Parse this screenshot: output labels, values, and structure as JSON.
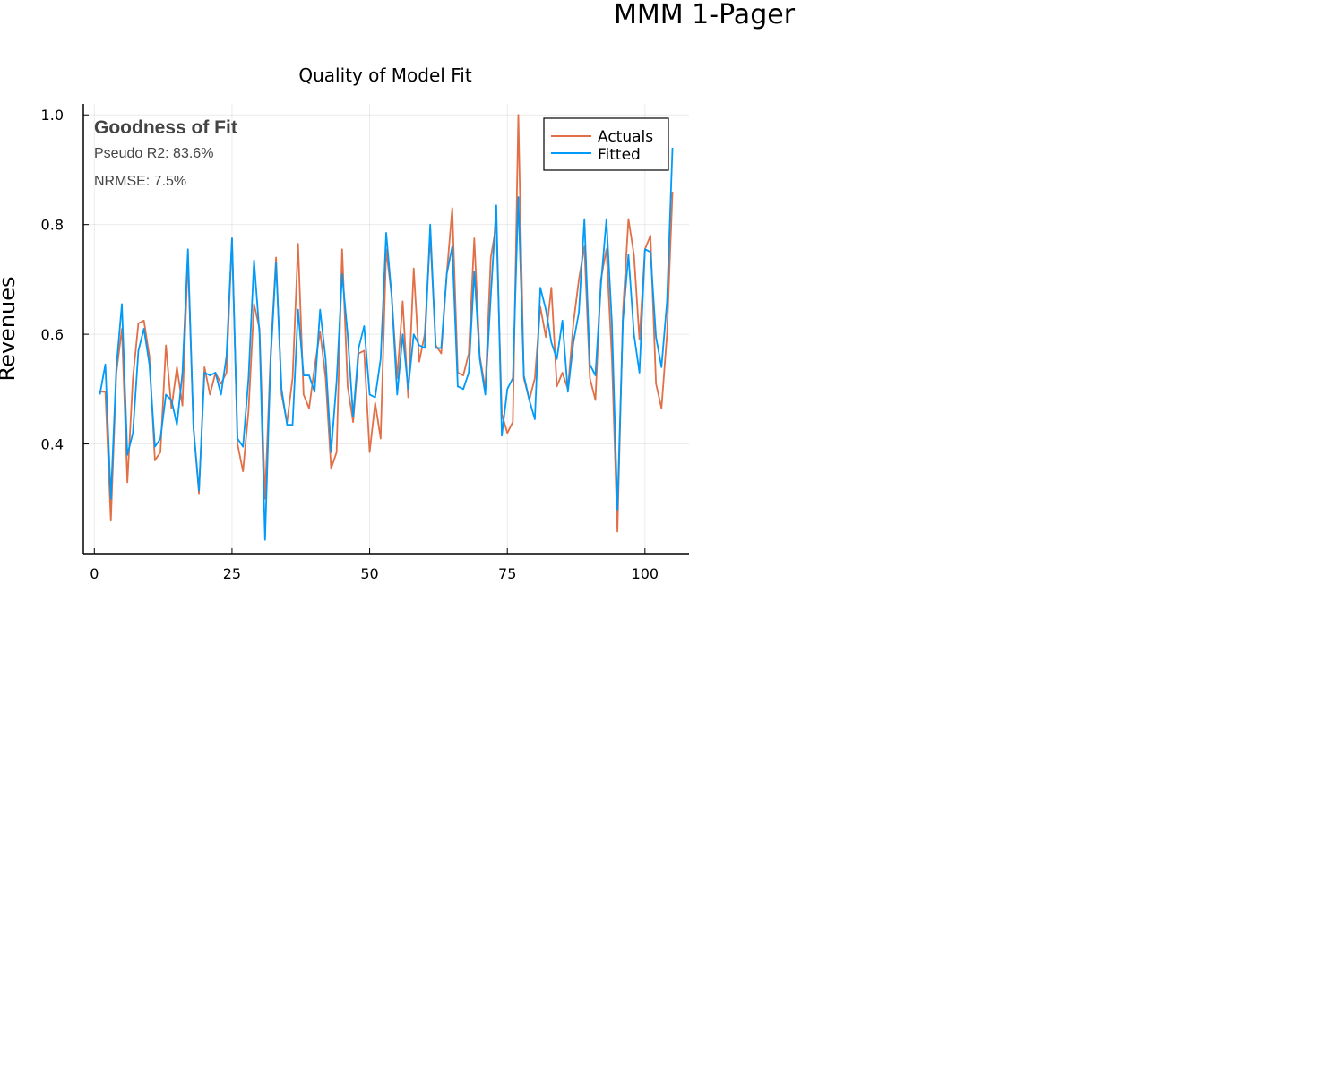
{
  "page": {
    "title": "MMM 1-Pager"
  },
  "chart_data": {
    "type": "line",
    "title": "Quality of Model Fit",
    "xlabel": "",
    "ylabel": "Revenues",
    "xlim": [
      -2,
      108
    ],
    "ylim": [
      0.2,
      1.02
    ],
    "x_ticks": [
      0,
      25,
      50,
      75,
      100
    ],
    "y_ticks": [
      0.4,
      0.6,
      0.8,
      1.0
    ],
    "x_tick_labels": [
      "0",
      "25",
      "50",
      "75",
      "100"
    ],
    "y_tick_labels": [
      "0.4",
      "0.6",
      "0.8",
      "1.0"
    ],
    "grid": true,
    "legend": "top-right",
    "annotation": {
      "title": "Goodness of Fit",
      "line1": "Pseudo R2: 83.6%",
      "line2": "NRMSE: 7.5%"
    },
    "x": [
      1,
      2,
      3,
      4,
      5,
      6,
      7,
      8,
      9,
      10,
      11,
      12,
      13,
      14,
      15,
      16,
      17,
      18,
      19,
      20,
      21,
      22,
      23,
      24,
      25,
      26,
      27,
      28,
      29,
      30,
      31,
      32,
      33,
      34,
      35,
      36,
      37,
      38,
      39,
      40,
      41,
      42,
      43,
      44,
      45,
      46,
      47,
      48,
      49,
      50,
      51,
      52,
      53,
      54,
      55,
      56,
      57,
      58,
      59,
      60,
      61,
      62,
      63,
      64,
      65,
      66,
      67,
      68,
      69,
      70,
      71,
      72,
      73,
      74,
      75,
      76,
      77,
      78,
      79,
      80,
      81,
      82,
      83,
      84,
      85,
      86,
      87,
      88,
      89,
      90,
      91,
      92,
      93,
      94,
      95,
      96,
      97,
      98,
      99,
      100,
      101,
      102,
      103,
      104,
      105
    ],
    "series": [
      {
        "name": "Actuals",
        "color": "#e26f46",
        "values": [
          0.495,
          0.495,
          0.26,
          0.53,
          0.61,
          0.33,
          0.52,
          0.62,
          0.625,
          0.56,
          0.37,
          0.385,
          0.58,
          0.465,
          0.54,
          0.47,
          0.74,
          0.43,
          0.31,
          0.54,
          0.49,
          0.53,
          0.51,
          0.53,
          0.775,
          0.4,
          0.35,
          0.46,
          0.655,
          0.61,
          0.3,
          0.56,
          0.74,
          0.49,
          0.44,
          0.52,
          0.765,
          0.49,
          0.465,
          0.54,
          0.605,
          0.52,
          0.355,
          0.385,
          0.755,
          0.505,
          0.44,
          0.565,
          0.57,
          0.385,
          0.475,
          0.41,
          0.755,
          0.67,
          0.52,
          0.66,
          0.485,
          0.72,
          0.55,
          0.6,
          0.78,
          0.58,
          0.565,
          0.71,
          0.83,
          0.53,
          0.525,
          0.565,
          0.775,
          0.56,
          0.5,
          0.74,
          0.8,
          0.455,
          0.42,
          0.44,
          1.0,
          0.52,
          0.48,
          0.52,
          0.65,
          0.595,
          0.685,
          0.505,
          0.53,
          0.5,
          0.62,
          0.7,
          0.76,
          0.52,
          0.48,
          0.7,
          0.755,
          0.555,
          0.24,
          0.64,
          0.81,
          0.745,
          0.59,
          0.755,
          0.78,
          0.51,
          0.465,
          0.6,
          0.86
        ]
      },
      {
        "name": "Fitted",
        "color": "#009af9",
        "values": [
          0.49,
          0.545,
          0.3,
          0.54,
          0.655,
          0.38,
          0.42,
          0.57,
          0.61,
          0.545,
          0.395,
          0.41,
          0.49,
          0.48,
          0.435,
          0.53,
          0.755,
          0.43,
          0.315,
          0.53,
          0.525,
          0.53,
          0.49,
          0.56,
          0.775,
          0.41,
          0.395,
          0.52,
          0.735,
          0.6,
          0.225,
          0.55,
          0.73,
          0.5,
          0.435,
          0.435,
          0.645,
          0.525,
          0.525,
          0.495,
          0.645,
          0.555,
          0.385,
          0.515,
          0.71,
          0.6,
          0.45,
          0.575,
          0.615,
          0.49,
          0.485,
          0.555,
          0.785,
          0.67,
          0.49,
          0.6,
          0.5,
          0.6,
          0.58,
          0.575,
          0.8,
          0.575,
          0.575,
          0.71,
          0.76,
          0.505,
          0.5,
          0.53,
          0.715,
          0.555,
          0.49,
          0.67,
          0.835,
          0.415,
          0.5,
          0.52,
          0.85,
          0.525,
          0.48,
          0.445,
          0.685,
          0.645,
          0.585,
          0.555,
          0.625,
          0.495,
          0.585,
          0.64,
          0.81,
          0.545,
          0.525,
          0.69,
          0.81,
          0.62,
          0.28,
          0.625,
          0.745,
          0.6,
          0.53,
          0.755,
          0.75,
          0.595,
          0.54,
          0.66,
          0.94
        ]
      }
    ]
  }
}
